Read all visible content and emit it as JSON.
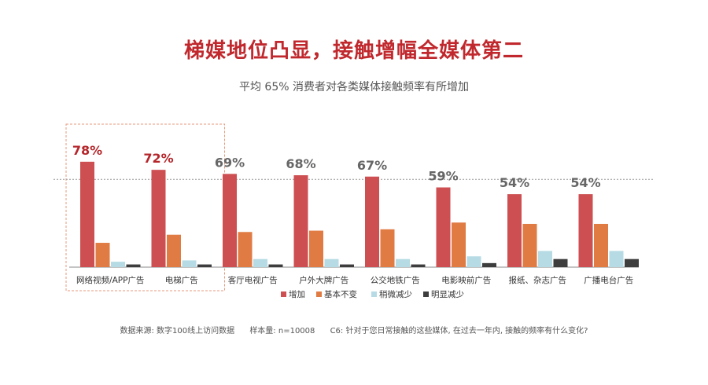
{
  "title": "梯媒地位凸显，接触增幅全媒体第二",
  "subtitle": "平均 65% 消费者对各类媒体接触频率有所增加",
  "footnote": {
    "source": "数据来源: 数字100线上访问数据",
    "sample": "样本量:  n=10008",
    "question": "C6: 针对于您日常接触的这些媒体, 在过去一年内, 接触的频率有什么变化?"
  },
  "colors": {
    "increase": "#cd4f52",
    "same": "#e07b43",
    "slight": "#b6dbe4",
    "clear": "#3d3d3d",
    "highlight_label": "#b5262b",
    "normal_label": "#666666",
    "highlight_box": "#e79a7e"
  },
  "chart_data": {
    "type": "bar",
    "categories": [
      "网络视频/APP广告",
      "电梯广告",
      "客厅电视广告",
      "户外大牌广告",
      "公交地铁广告",
      "电影映前广告",
      "报纸、杂志广告",
      "广播电台广告"
    ],
    "series": [
      {
        "name": "增加",
        "values": [
          78,
          72,
          69,
          68,
          67,
          59,
          54,
          54
        ]
      },
      {
        "name": "基本不变",
        "values": [
          18,
          24,
          26,
          27,
          28,
          33,
          32,
          32
        ]
      },
      {
        "name": "稍微减少",
        "values": [
          4,
          5,
          6,
          6,
          6,
          8,
          12,
          12
        ]
      },
      {
        "name": "明显减少",
        "values": [
          2,
          2,
          2,
          2,
          2,
          3,
          6,
          6
        ]
      }
    ],
    "data_labels": [
      "78%",
      "72%",
      "69%",
      "68%",
      "67%",
      "59%",
      "54%",
      "54%"
    ],
    "highlighted_categories": [
      0,
      1
    ],
    "reference_line": 65,
    "ylim": [
      0,
      100
    ],
    "legend": "bottom-center",
    "grid": false
  }
}
